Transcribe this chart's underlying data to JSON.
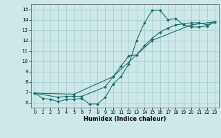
{
  "xlabel": "Humidex (Indice chaleur)",
  "xlim": [
    -0.5,
    23.5
  ],
  "ylim": [
    5.5,
    15.5
  ],
  "xticks": [
    0,
    1,
    2,
    3,
    4,
    5,
    6,
    7,
    8,
    9,
    10,
    11,
    12,
    13,
    14,
    15,
    16,
    17,
    18,
    19,
    20,
    21,
    22,
    23
  ],
  "yticks": [
    6,
    7,
    8,
    9,
    10,
    11,
    12,
    13,
    14,
    15
  ],
  "bg_color": "#cce8e8",
  "line_color": "#1a6b6b",
  "grid_color": "#aacccc",
  "line1_x": [
    0,
    1,
    2,
    3,
    4,
    5,
    6,
    7,
    8,
    9,
    10,
    11,
    12,
    13,
    14,
    15,
    16,
    17,
    18,
    19,
    20,
    21,
    22,
    23
  ],
  "line1_y": [
    6.9,
    6.4,
    6.3,
    6.1,
    6.3,
    6.3,
    6.4,
    5.85,
    5.85,
    6.5,
    7.8,
    8.5,
    9.7,
    12.0,
    13.7,
    14.9,
    14.9,
    14.0,
    14.1,
    13.5,
    13.3,
    13.3,
    13.4,
    13.75
  ],
  "line2_x": [
    0,
    3,
    4,
    5,
    6,
    9,
    10,
    11,
    12,
    13,
    14,
    15,
    16,
    17,
    18,
    19,
    20,
    21,
    22,
    23
  ],
  "line2_y": [
    6.9,
    6.5,
    6.6,
    6.6,
    6.6,
    7.5,
    8.5,
    9.5,
    10.5,
    10.6,
    11.5,
    12.2,
    12.8,
    13.2,
    13.5,
    13.6,
    13.7,
    13.7,
    13.5,
    13.8
  ],
  "line3_x": [
    0,
    5,
    10,
    15,
    20,
    23
  ],
  "line3_y": [
    6.9,
    6.8,
    8.5,
    12.0,
    13.5,
    13.8
  ]
}
